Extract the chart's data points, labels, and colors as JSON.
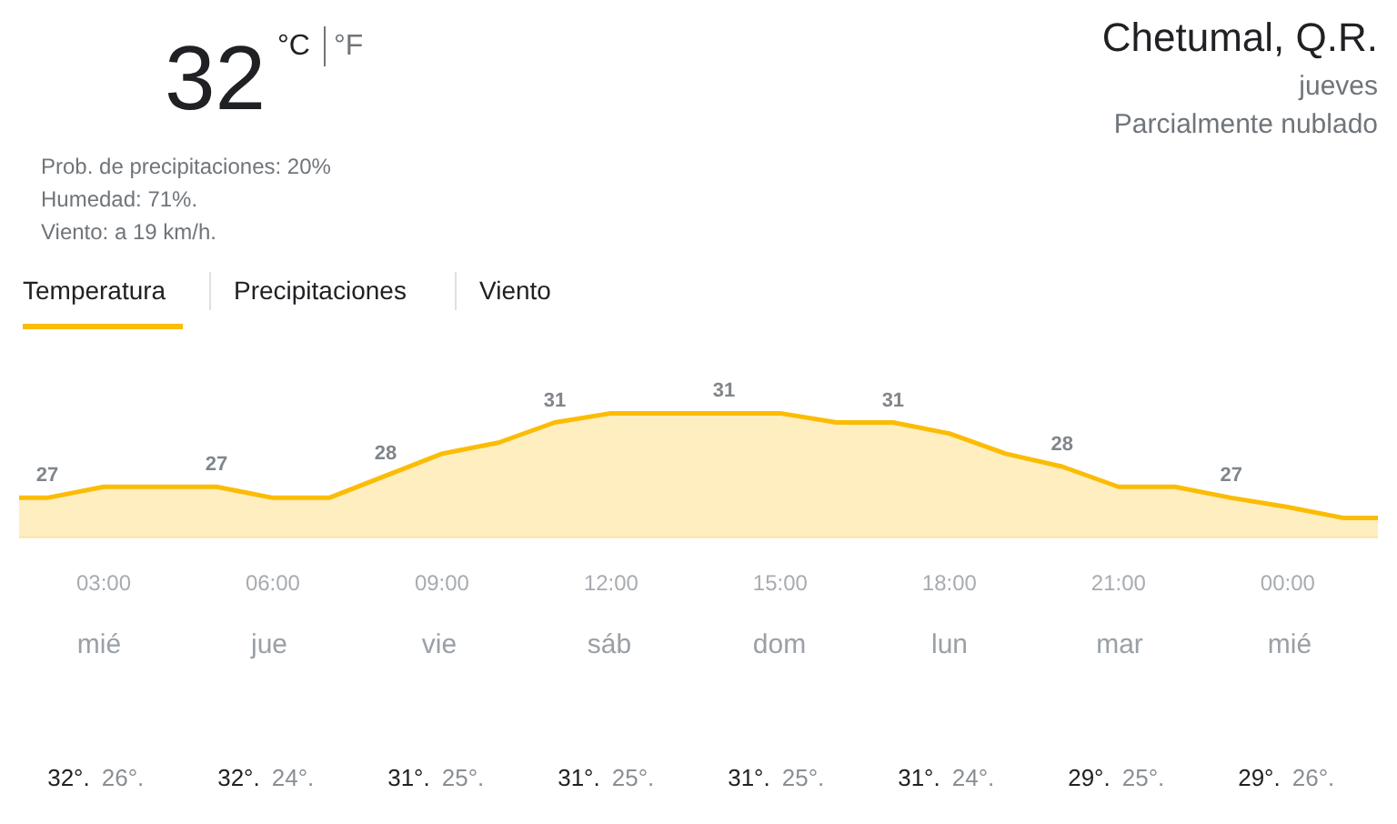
{
  "chart_data": [
    {
      "type": "other",
      "title": "Chetumal, Q.R.",
      "subtitle": "jueves",
      "annotations": [
        "Parcialmente nublado",
        "32",
        "°C",
        "°F",
        "Prob. de precipitaciones: 20%",
        "Humedad: 71%.",
        "Viento: a 19 km/h.",
        "Temperatura",
        "Precipitaciones",
        "Viento"
      ]
    },
    {
      "type": "area",
      "x": [
        1.5,
        2,
        3,
        4,
        5,
        6,
        7,
        8,
        9,
        10,
        11,
        12,
        13,
        14,
        15,
        16,
        17,
        18,
        19,
        20,
        21,
        22,
        23,
        24,
        25,
        25.6
      ],
      "values": [
        26.7,
        26.7,
        27.3,
        27.3,
        27.3,
        26.7,
        26.7,
        27.9,
        29.1,
        29.7,
        30.8,
        31.3,
        31.3,
        31.3,
        31.3,
        30.8,
        30.8,
        30.2,
        29.1,
        28.4,
        27.3,
        27.3,
        26.7,
        26.2,
        25.6,
        25.6
      ],
      "value_labels": [
        null,
        "27",
        null,
        null,
        "27",
        null,
        null,
        "28",
        null,
        null,
        "31",
        null,
        null,
        "31",
        null,
        null,
        "31",
        null,
        null,
        "28",
        null,
        null,
        "27",
        null,
        null,
        null
      ],
      "color": "#fbbc04",
      "xlim": [
        1.5,
        25.6
      ],
      "xticks": [
        {
          "value": 3,
          "label": "03:00"
        },
        {
          "value": 6,
          "label": "06:00"
        },
        {
          "value": 9,
          "label": "09:00"
        },
        {
          "value": 12,
          "label": "12:00"
        },
        {
          "value": 15,
          "label": "15:00"
        },
        {
          "value": 18,
          "label": "18:00"
        },
        {
          "value": 21,
          "label": "21:00"
        },
        {
          "value": 24,
          "label": "00:00"
        }
      ],
      "tick_labels": "x"
    },
    {
      "type": "other",
      "categories": [
        "mié",
        "jue",
        "vie",
        "sáb",
        "dom",
        "lun",
        "mar",
        "mié"
      ],
      "annotations": [
        "32°.",
        "26°.",
        "32°.",
        "24°.",
        "31°.",
        "25°.",
        "31°.",
        "25°.",
        "31°.",
        "25°.",
        "31°.",
        "24°.",
        "29°.",
        "25°.",
        "29°.",
        "26°."
      ]
    }
  ]
}
